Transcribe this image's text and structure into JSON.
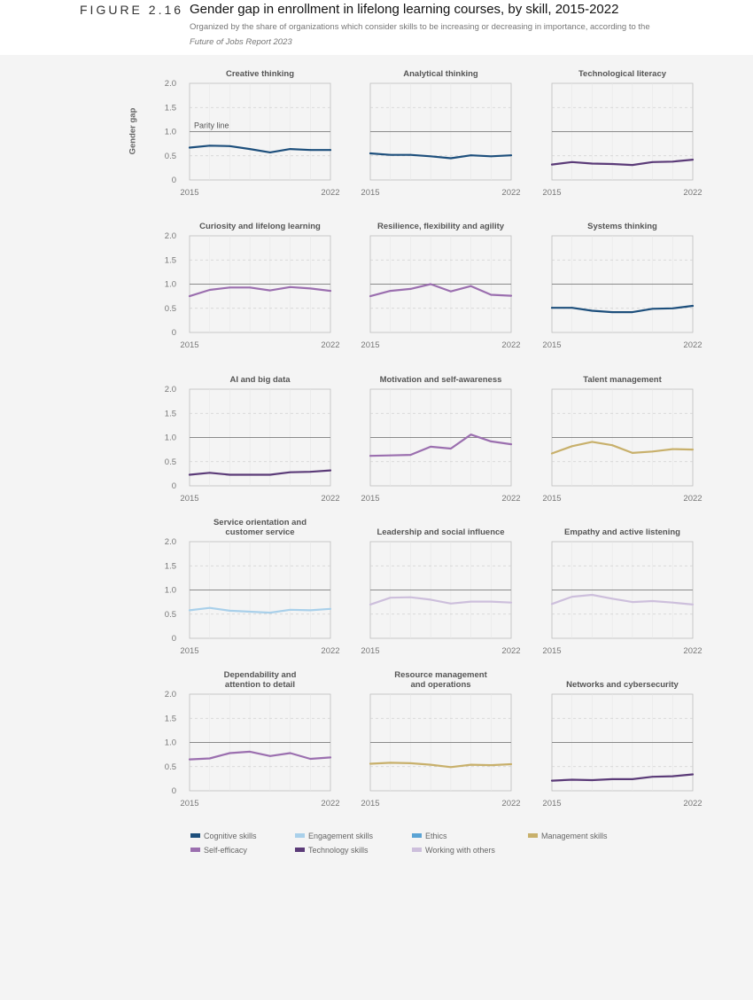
{
  "figure": {
    "number": "FIGURE 2.16",
    "title": "Gender gap in enrollment in lifelong learning courses, by skill, 2015-2022",
    "subtitle_line1": "Organized by the share of organizations which consider skills to be increasing or decreasing in importance, according to the",
    "subtitle_line2": "Future of Jobs Report 2023"
  },
  "y_axis_label": "Gender gap",
  "parity_label": "Parity line",
  "category_colors": {
    "Cognitive skills": "#1d4f7c",
    "Engagement skills": "#a9d0ea",
    "Ethics": "#5aa3d4",
    "Management skills": "#c8b06b",
    "Self-efficacy": "#9b6faf",
    "Technology skills": "#5b3b78",
    "Working with others": "#cdbfdc"
  },
  "legend": [
    {
      "label": "Cognitive skills",
      "color": "#1d4f7c"
    },
    {
      "label": "Engagement skills",
      "color": "#a9d0ea"
    },
    {
      "label": "Ethics",
      "color": "#5aa3d4"
    },
    {
      "label": "Management skills",
      "color": "#c8b06b"
    },
    {
      "label": "Self-efficacy",
      "color": "#9b6faf"
    },
    {
      "label": "Technology skills",
      "color": "#5b3b78"
    },
    {
      "label": "Working with others",
      "color": "#cdbfdc"
    }
  ],
  "chart_data": [
    {
      "type": "line",
      "title": [
        "Creative thinking"
      ],
      "category": "Cognitive skills",
      "x": [
        2015,
        2016,
        2017,
        2018,
        2019,
        2020,
        2021,
        2022
      ],
      "values": [
        0.67,
        0.71,
        0.7,
        0.64,
        0.57,
        0.64,
        0.62,
        0.62
      ],
      "ylim": [
        0,
        2
      ],
      "y_ticks": [
        "0",
        "0.5",
        "1.0",
        "1.5",
        "2.0"
      ],
      "x_tick_labels": [
        "2015",
        "2022"
      ],
      "parity": 1.0,
      "reference": 0.5
    },
    {
      "type": "line",
      "title": [
        "Analytical thinking"
      ],
      "category": "Cognitive skills",
      "x": [
        2015,
        2016,
        2017,
        2018,
        2019,
        2020,
        2021,
        2022
      ],
      "values": [
        0.55,
        0.52,
        0.52,
        0.49,
        0.45,
        0.51,
        0.49,
        0.51
      ],
      "ylim": [
        0,
        2
      ],
      "y_ticks": [
        "0",
        "0.5",
        "1.0",
        "1.5",
        "2.0"
      ],
      "x_tick_labels": [
        "2015",
        "2022"
      ],
      "parity": 1.0,
      "reference": 0.5
    },
    {
      "type": "line",
      "title": [
        "Technological literacy"
      ],
      "category": "Technology skills",
      "x": [
        2015,
        2016,
        2017,
        2018,
        2019,
        2020,
        2021,
        2022
      ],
      "values": [
        0.32,
        0.37,
        0.34,
        0.33,
        0.31,
        0.37,
        0.38,
        0.42
      ],
      "ylim": [
        0,
        2
      ],
      "y_ticks": [
        "0",
        "0.5",
        "1.0",
        "1.5",
        "2.0"
      ],
      "x_tick_labels": [
        "2015",
        "2022"
      ],
      "parity": 1.0,
      "reference": 0.5
    },
    {
      "type": "line",
      "title": [
        "Curiosity and lifelong learning"
      ],
      "category": "Self-efficacy",
      "x": [
        2015,
        2016,
        2017,
        2018,
        2019,
        2020,
        2021,
        2022
      ],
      "values": [
        0.75,
        0.88,
        0.93,
        0.93,
        0.87,
        0.94,
        0.91,
        0.86
      ],
      "ylim": [
        0,
        2
      ],
      "y_ticks": [
        "0",
        "0.5",
        "1.0",
        "1.5",
        "2.0"
      ],
      "x_tick_labels": [
        "2015",
        "2022"
      ],
      "parity": 1.0,
      "reference": 0.5
    },
    {
      "type": "line",
      "title": [
        "Resilience, flexibility and agility"
      ],
      "category": "Self-efficacy",
      "x": [
        2015,
        2016,
        2017,
        2018,
        2019,
        2020,
        2021,
        2022
      ],
      "values": [
        0.75,
        0.86,
        0.9,
        1.0,
        0.85,
        0.96,
        0.78,
        0.76
      ],
      "ylim": [
        0,
        2
      ],
      "y_ticks": [
        "0",
        "0.5",
        "1.0",
        "1.5",
        "2.0"
      ],
      "x_tick_labels": [
        "2015",
        "2022"
      ],
      "parity": 1.0,
      "reference": 0.5
    },
    {
      "type": "line",
      "title": [
        "Systems thinking"
      ],
      "category": "Cognitive skills",
      "x": [
        2015,
        2016,
        2017,
        2018,
        2019,
        2020,
        2021,
        2022
      ],
      "values": [
        0.51,
        0.51,
        0.45,
        0.42,
        0.42,
        0.49,
        0.5,
        0.55
      ],
      "ylim": [
        0,
        2
      ],
      "y_ticks": [
        "0",
        "0.5",
        "1.0",
        "1.5",
        "2.0"
      ],
      "x_tick_labels": [
        "2015",
        "2022"
      ],
      "parity": 1.0,
      "reference": 0.5
    },
    {
      "type": "line",
      "title": [
        "AI and big data"
      ],
      "category": "Technology skills",
      "x": [
        2015,
        2016,
        2017,
        2018,
        2019,
        2020,
        2021,
        2022
      ],
      "values": [
        0.23,
        0.27,
        0.23,
        0.23,
        0.23,
        0.28,
        0.29,
        0.32
      ],
      "ylim": [
        0,
        2
      ],
      "y_ticks": [
        "0",
        "0.5",
        "1.0",
        "1.5",
        "2.0"
      ],
      "x_tick_labels": [
        "2015",
        "2022"
      ],
      "parity": 1.0,
      "reference": 0.5
    },
    {
      "type": "line",
      "title": [
        "Motivation and self-awareness"
      ],
      "category": "Self-efficacy",
      "x": [
        2015,
        2016,
        2017,
        2018,
        2019,
        2020,
        2021,
        2022
      ],
      "values": [
        0.62,
        0.63,
        0.64,
        0.81,
        0.77,
        1.06,
        0.92,
        0.86
      ],
      "ylim": [
        0,
        2
      ],
      "y_ticks": [
        "0",
        "0.5",
        "1.0",
        "1.5",
        "2.0"
      ],
      "x_tick_labels": [
        "2015",
        "2022"
      ],
      "parity": 1.0,
      "reference": 0.5
    },
    {
      "type": "line",
      "title": [
        "Talent management"
      ],
      "category": "Management skills",
      "x": [
        2015,
        2016,
        2017,
        2018,
        2019,
        2020,
        2021,
        2022
      ],
      "values": [
        0.67,
        0.82,
        0.91,
        0.84,
        0.68,
        0.71,
        0.76,
        0.75
      ],
      "ylim": [
        0,
        2
      ],
      "y_ticks": [
        "0",
        "0.5",
        "1.0",
        "1.5",
        "2.0"
      ],
      "x_tick_labels": [
        "2015",
        "2022"
      ],
      "parity": 1.0,
      "reference": 0.5
    },
    {
      "type": "line",
      "title": [
        "Service orientation and",
        "customer service"
      ],
      "category": "Engagement skills",
      "x": [
        2015,
        2016,
        2017,
        2018,
        2019,
        2020,
        2021,
        2022
      ],
      "values": [
        0.58,
        0.63,
        0.57,
        0.55,
        0.53,
        0.59,
        0.58,
        0.61
      ],
      "ylim": [
        0,
        2
      ],
      "y_ticks": [
        "0",
        "0.5",
        "1.0",
        "1.5",
        "2.0"
      ],
      "x_tick_labels": [
        "2015",
        "2022"
      ],
      "parity": 1.0,
      "reference": 0.5
    },
    {
      "type": "line",
      "title": [
        "Leadership and social influence"
      ],
      "category": "Working with others",
      "x": [
        2015,
        2016,
        2017,
        2018,
        2019,
        2020,
        2021,
        2022
      ],
      "values": [
        0.7,
        0.84,
        0.85,
        0.8,
        0.72,
        0.76,
        0.76,
        0.74
      ],
      "ylim": [
        0,
        2
      ],
      "y_ticks": [
        "0",
        "0.5",
        "1.0",
        "1.5",
        "2.0"
      ],
      "x_tick_labels": [
        "2015",
        "2022"
      ],
      "parity": 1.0,
      "reference": 0.5
    },
    {
      "type": "line",
      "title": [
        "Empathy and active listening"
      ],
      "category": "Working with others",
      "x": [
        2015,
        2016,
        2017,
        2018,
        2019,
        2020,
        2021,
        2022
      ],
      "values": [
        0.71,
        0.86,
        0.9,
        0.82,
        0.75,
        0.77,
        0.74,
        0.7
      ],
      "ylim": [
        0,
        2
      ],
      "y_ticks": [
        "0",
        "0.5",
        "1.0",
        "1.5",
        "2.0"
      ],
      "x_tick_labels": [
        "2015",
        "2022"
      ],
      "parity": 1.0,
      "reference": 0.5
    },
    {
      "type": "line",
      "title": [
        "Dependability and",
        "attention to detail"
      ],
      "category": "Self-efficacy",
      "x": [
        2015,
        2016,
        2017,
        2018,
        2019,
        2020,
        2021,
        2022
      ],
      "values": [
        0.65,
        0.67,
        0.78,
        0.81,
        0.72,
        0.78,
        0.66,
        0.69
      ],
      "ylim": [
        0,
        2
      ],
      "y_ticks": [
        "0",
        "0.5",
        "1.0",
        "1.5",
        "2.0"
      ],
      "x_tick_labels": [
        "2015",
        "2022"
      ],
      "parity": 1.0,
      "reference": 0.5
    },
    {
      "type": "line",
      "title": [
        "Resource management",
        "and operations"
      ],
      "category": "Management skills",
      "x": [
        2015,
        2016,
        2017,
        2018,
        2019,
        2020,
        2021,
        2022
      ],
      "values": [
        0.56,
        0.58,
        0.57,
        0.54,
        0.49,
        0.54,
        0.53,
        0.55
      ],
      "ylim": [
        0,
        2
      ],
      "y_ticks": [
        "0",
        "0.5",
        "1.0",
        "1.5",
        "2.0"
      ],
      "x_tick_labels": [
        "2015",
        "2022"
      ],
      "parity": 1.0,
      "reference": 0.5
    },
    {
      "type": "line",
      "title": [
        "Networks and cybersecurity"
      ],
      "category": "Technology skills",
      "x": [
        2015,
        2016,
        2017,
        2018,
        2019,
        2020,
        2021,
        2022
      ],
      "values": [
        0.21,
        0.23,
        0.22,
        0.24,
        0.24,
        0.29,
        0.3,
        0.34
      ],
      "ylim": [
        0,
        2
      ],
      "y_ticks": [
        "0",
        "0.5",
        "1.0",
        "1.5",
        "2.0"
      ],
      "x_tick_labels": [
        "2015",
        "2022"
      ],
      "parity": 1.0,
      "reference": 0.5
    }
  ]
}
